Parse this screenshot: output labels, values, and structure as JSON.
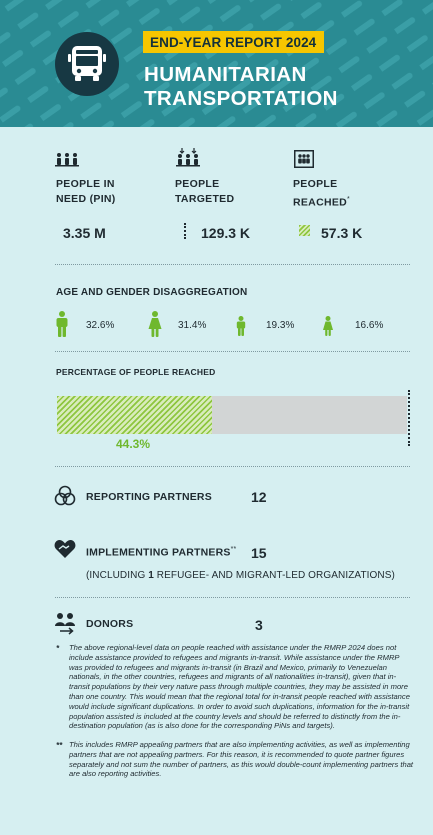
{
  "header": {
    "badge": "END-YEAR REPORT 2024",
    "title_line1": "HUMANITARIAN",
    "title_line2": "TRANSPORTATION",
    "icon": "bus-icon"
  },
  "metrics": {
    "pin": {
      "label_line1": "PEOPLE IN",
      "label_line2": "NEED (PIN)",
      "value": "3.35 M",
      "icon": "people-group-icon"
    },
    "targeted": {
      "label_line1": "PEOPLE",
      "label_line2": "TARGETED",
      "value": "129.3 K",
      "icon": "people-targeted-icon"
    },
    "reached": {
      "label_line1": "PEOPLE",
      "label_line2": "REACHED",
      "label_sup": "*",
      "value": "57.3 K",
      "icon": "people-reached-icon"
    }
  },
  "age_gender": {
    "title": "AGE AND GENDER DISAGGREGATION",
    "items": [
      {
        "icon": "man-icon",
        "pct": "32.6%"
      },
      {
        "icon": "woman-icon",
        "pct": "31.4%"
      },
      {
        "icon": "boy-icon",
        "pct": "19.3%"
      },
      {
        "icon": "girl-icon",
        "pct": "16.6%"
      }
    ]
  },
  "reached_pct": {
    "title": "PERCENTAGE OF PEOPLE REACHED",
    "value": 0.443,
    "label": "44.3%"
  },
  "partners": {
    "reporting": {
      "label": "REPORTING PARTNERS",
      "value": "12",
      "icon": "partners-circles-icon"
    },
    "implementing": {
      "label": "IMPLEMENTING PARTNERS",
      "sup": "**",
      "value": "15",
      "sub_prefix": "(INCLUDING ",
      "sub_bold": "1",
      "sub_suffix": " REFUGEE- AND MIGRANT-LED ORGANIZATIONS)",
      "icon": "handshake-heart-icon"
    },
    "donors": {
      "label": "DONORS",
      "value": "3",
      "icon": "donors-icon"
    }
  },
  "footnotes": [
    {
      "mark": "*",
      "text": "The above regional-level data on people reached with assistance under the RMRP 2024 does not include assistance provided to refugees and migrants in-transit. While assistance under the RMRP was provided to refugees and migrants in-transit (in Brazil and Mexico, primarily to Venezuelan nationals, in the other countries, refugees and migrants of all nationalities in-transit), given that in-transit populations by their very nature pass through multiple countries, they may be assisted in more than one country. This would mean that the regional total for in-transit people reached with assistance would include significant duplications. In order to avoid such duplications, information for the in-transit population assisted is included at the country levels and should be referred to distinctly from the in-destination population (as is also done for the corresponding PiNs and targets)."
    },
    {
      "mark": "**",
      "text": "This includes RMRP appealing partners that are also implementing activities, as well as implementing partners that are not appealing partners. For this reason, it is recommended to quote partner figures separately and not sum the number of partners, as this would double-count implementing partners that are also reporting activities."
    }
  ],
  "colors": {
    "header_bg": "#2a8b93",
    "badge_bg": "#f6c600",
    "page_bg": "#d6eff1",
    "accent_green": "#8ec63f",
    "dark": "#173843"
  }
}
